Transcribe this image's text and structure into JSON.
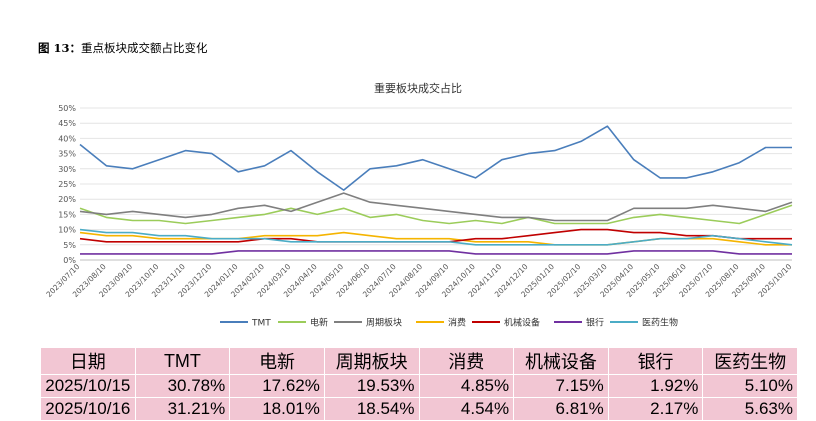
{
  "figure": {
    "number": "图 13：",
    "title": "重点板块成交额占比变化"
  },
  "colors": {
    "TMT": "#4a7ebb",
    "电新": "#9bcc5a",
    "周期板块": "#7f7f7f",
    "消费": "#f5b400",
    "机械设备": "#c00000",
    "银行": "#7030a0",
    "医药生物": "#4bacc6"
  },
  "chart_data": {
    "type": "line",
    "title": "重要板块成交占比",
    "xlabel": "",
    "ylabel": "",
    "ylim": [
      0,
      0.5
    ],
    "y_ticks": [
      "0%",
      "5%",
      "10%",
      "15%",
      "20%",
      "25%",
      "30%",
      "35%",
      "40%",
      "45%",
      "50%"
    ],
    "grid": true,
    "legend_position": "bottom",
    "categories": [
      "2023/07/10",
      "2023/08/10",
      "2023/09/10",
      "2023/10/10",
      "2023/11/10",
      "2023/12/10",
      "2024/01/10",
      "2024/02/10",
      "2024/03/10",
      "2024/04/10",
      "2024/05/10",
      "2024/06/10",
      "2024/07/10",
      "2024/08/10",
      "2024/09/10",
      "2024/10/10",
      "2024/11/10",
      "2024/12/10",
      "2025/01/10",
      "2025/02/10",
      "2025/03/10",
      "2025/04/10",
      "2025/05/10",
      "2025/06/10",
      "2025/07/10",
      "2025/08/10",
      "2025/09/10",
      "2025/10/10"
    ],
    "series": [
      {
        "name": "TMT",
        "values": [
          0.38,
          0.31,
          0.3,
          0.33,
          0.36,
          0.35,
          0.29,
          0.31,
          0.36,
          0.29,
          0.23,
          0.3,
          0.31,
          0.33,
          0.3,
          0.27,
          0.33,
          0.35,
          0.36,
          0.39,
          0.44,
          0.33,
          0.27,
          0.27,
          0.29,
          0.32,
          0.37,
          0.37
        ]
      },
      {
        "name": "电新",
        "values": [
          0.17,
          0.14,
          0.13,
          0.13,
          0.12,
          0.13,
          0.14,
          0.15,
          0.17,
          0.15,
          0.17,
          0.14,
          0.15,
          0.13,
          0.12,
          0.13,
          0.12,
          0.14,
          0.12,
          0.12,
          0.12,
          0.14,
          0.15,
          0.14,
          0.13,
          0.12,
          0.15,
          0.18
        ]
      },
      {
        "name": "周期板块",
        "values": [
          0.16,
          0.15,
          0.16,
          0.15,
          0.14,
          0.15,
          0.17,
          0.18,
          0.16,
          0.19,
          0.22,
          0.19,
          0.18,
          0.17,
          0.16,
          0.15,
          0.14,
          0.14,
          0.13,
          0.13,
          0.13,
          0.17,
          0.17,
          0.17,
          0.18,
          0.17,
          0.16,
          0.19
        ]
      },
      {
        "name": "消费",
        "values": [
          0.09,
          0.08,
          0.08,
          0.07,
          0.07,
          0.07,
          0.07,
          0.08,
          0.08,
          0.08,
          0.09,
          0.08,
          0.07,
          0.07,
          0.07,
          0.06,
          0.06,
          0.06,
          0.05,
          0.05,
          0.05,
          0.06,
          0.07,
          0.07,
          0.07,
          0.06,
          0.05,
          0.05
        ]
      },
      {
        "name": "机械设备",
        "values": [
          0.07,
          0.06,
          0.06,
          0.06,
          0.06,
          0.06,
          0.06,
          0.07,
          0.07,
          0.06,
          0.06,
          0.06,
          0.06,
          0.06,
          0.06,
          0.07,
          0.07,
          0.08,
          0.09,
          0.1,
          0.1,
          0.09,
          0.09,
          0.08,
          0.08,
          0.07,
          0.07,
          0.07
        ]
      },
      {
        "name": "银行",
        "values": [
          0.02,
          0.02,
          0.02,
          0.02,
          0.02,
          0.02,
          0.03,
          0.03,
          0.03,
          0.03,
          0.03,
          0.03,
          0.03,
          0.03,
          0.03,
          0.02,
          0.02,
          0.02,
          0.02,
          0.02,
          0.02,
          0.03,
          0.03,
          0.03,
          0.03,
          0.02,
          0.02,
          0.02
        ]
      },
      {
        "name": "医药生物",
        "values": [
          0.1,
          0.09,
          0.09,
          0.08,
          0.08,
          0.07,
          0.07,
          0.07,
          0.06,
          0.06,
          0.06,
          0.06,
          0.06,
          0.06,
          0.06,
          0.05,
          0.05,
          0.05,
          0.05,
          0.05,
          0.05,
          0.06,
          0.07,
          0.07,
          0.08,
          0.07,
          0.06,
          0.05
        ]
      }
    ]
  },
  "table": {
    "headers": [
      "日期",
      "TMT",
      "电新",
      "周期板块",
      "消费",
      "机械设备",
      "银行",
      "医药生物"
    ],
    "rows": [
      [
        "2025/10/15",
        "30.78%",
        "17.62%",
        "19.53%",
        "4.85%",
        "7.15%",
        "1.92%",
        "5.10%"
      ],
      [
        "2025/10/16",
        "31.21%",
        "18.01%",
        "18.54%",
        "4.54%",
        "6.81%",
        "2.17%",
        "5.63%"
      ]
    ]
  }
}
